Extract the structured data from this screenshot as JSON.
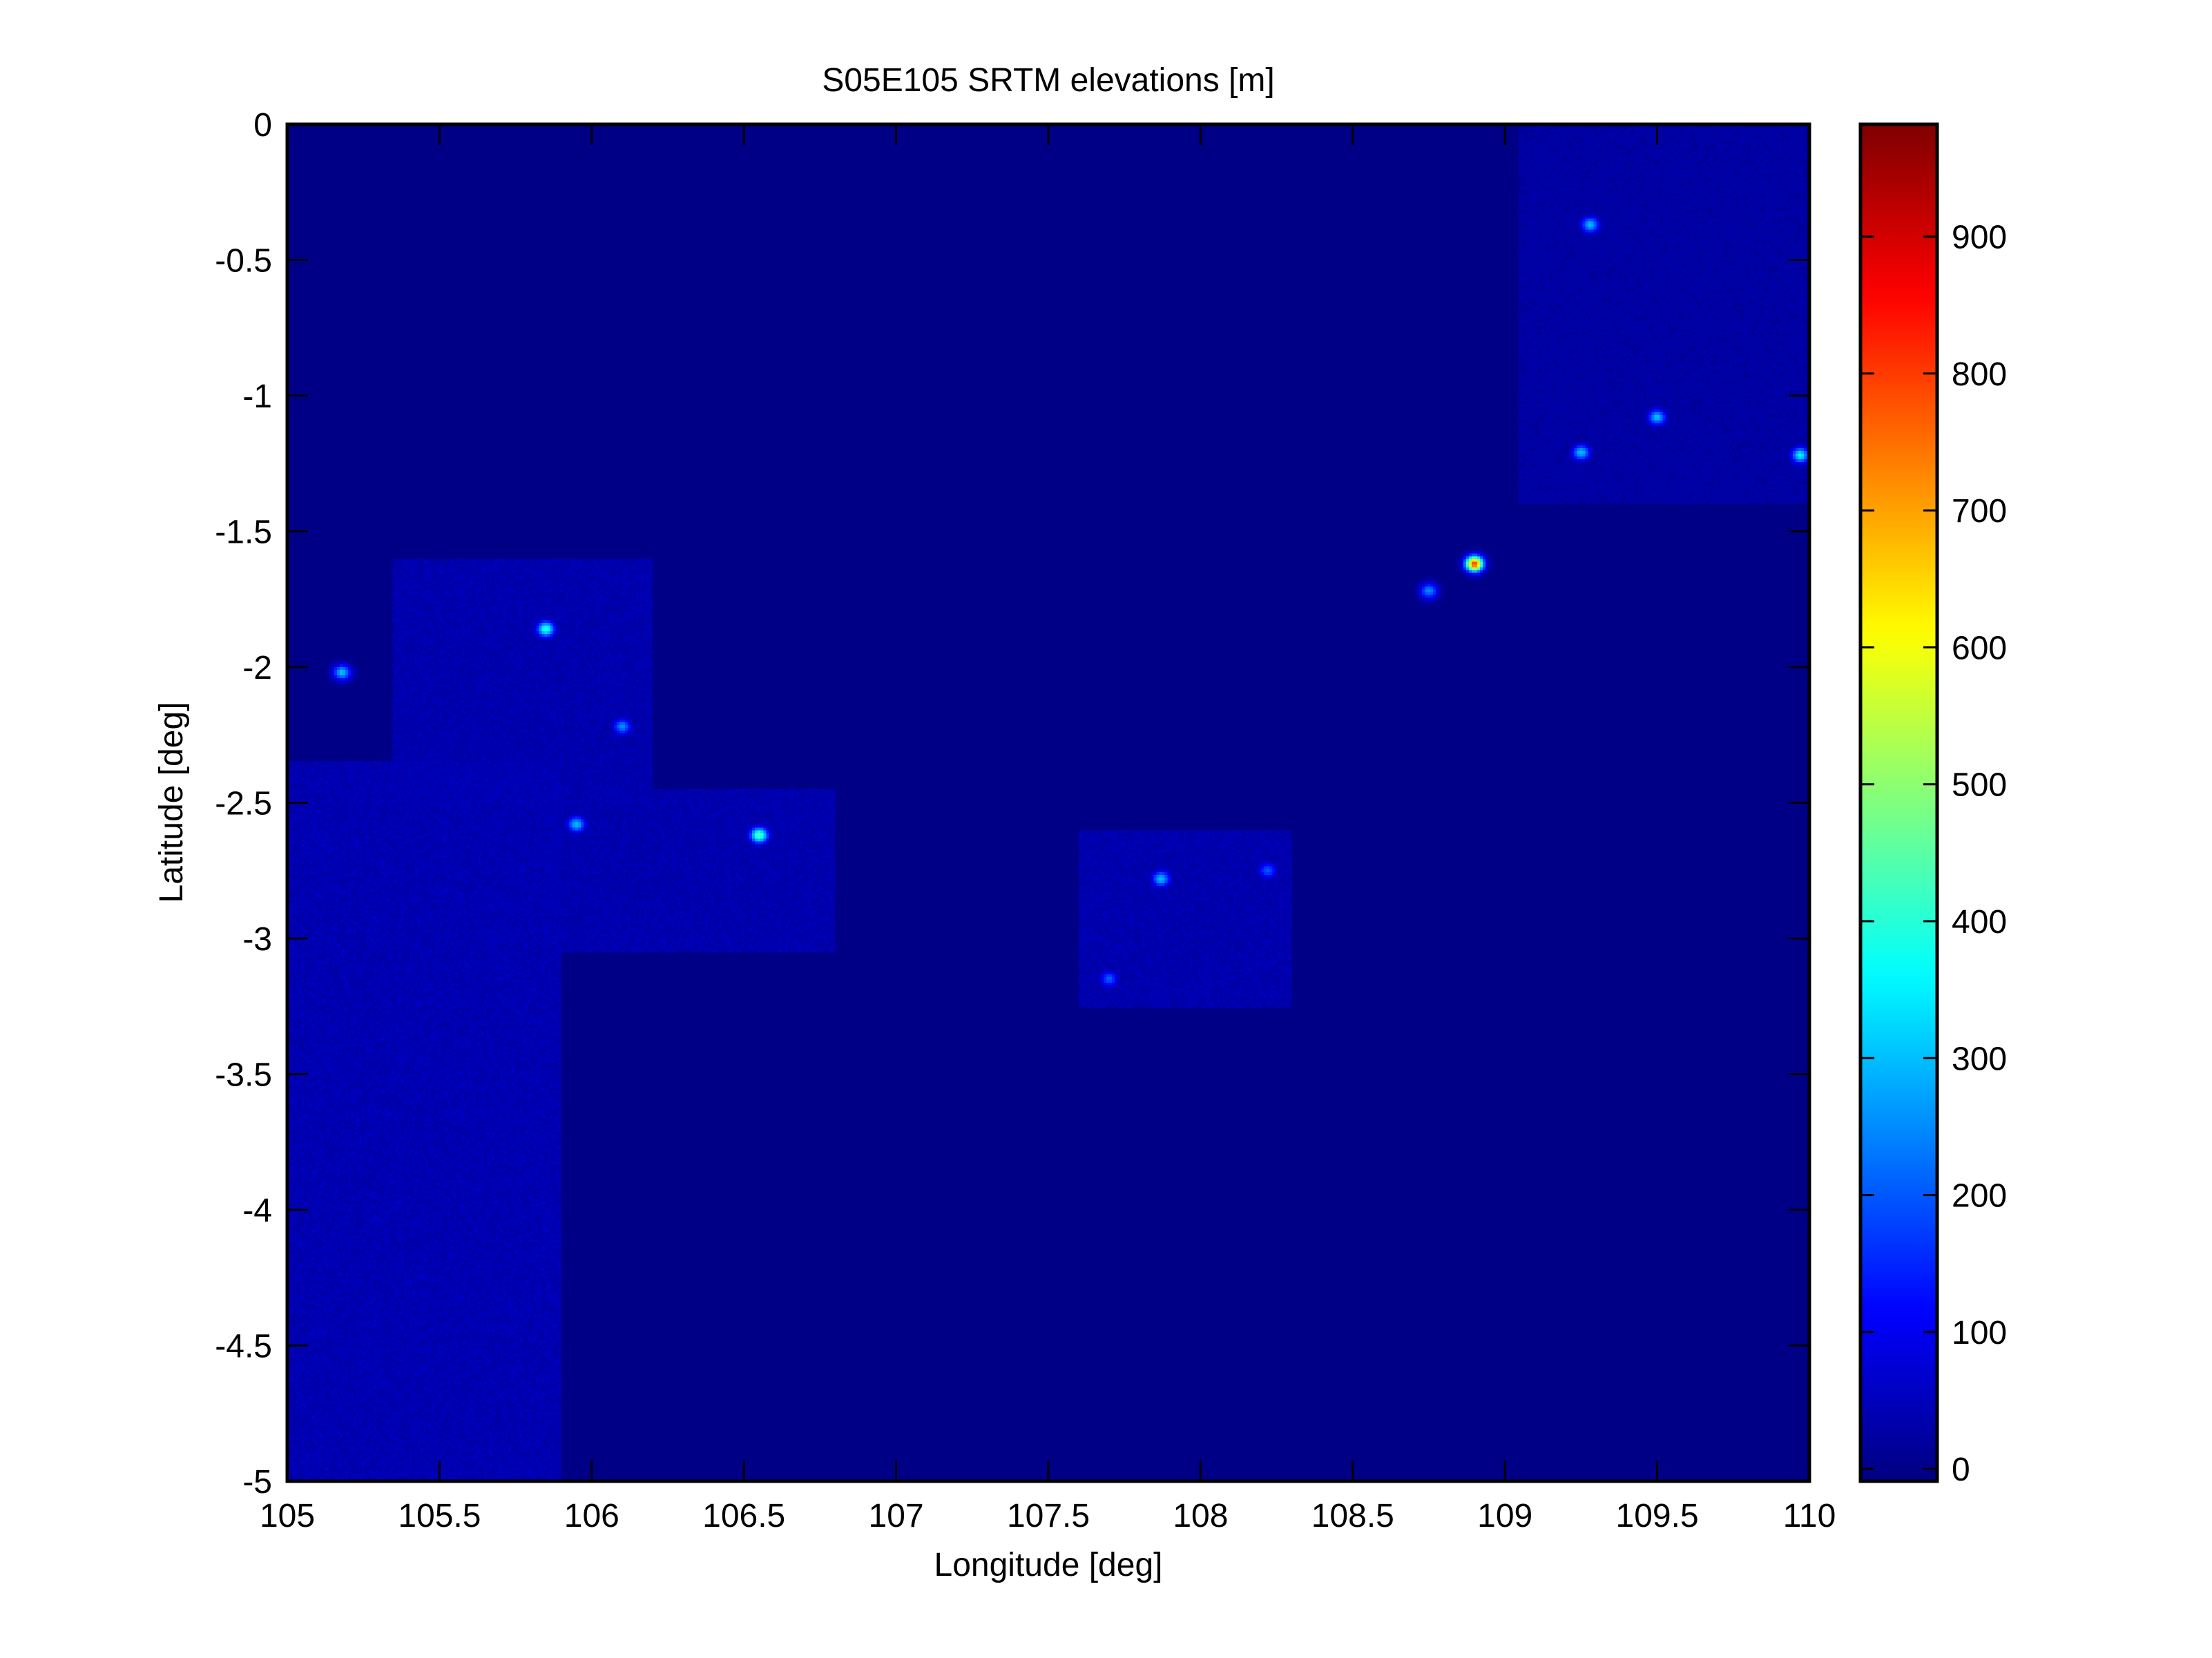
{
  "chart_data": {
    "type": "heatmap",
    "title": "S05E105 SRTM elevations [m]",
    "xlabel": "Longitude [deg]",
    "ylabel": "Latitude [deg]",
    "xlim": [
      105,
      110
    ],
    "ylim": [
      -5,
      0
    ],
    "xticks": [
      "105",
      "105.5",
      "106",
      "106.5",
      "107",
      "107.5",
      "108",
      "108.5",
      "109",
      "109.5",
      "110"
    ],
    "yticks": [
      "0",
      "-0.5",
      "-1",
      "-1.5",
      "-2",
      "-2.5",
      "-3",
      "-3.5",
      "-4",
      "-4.5",
      "-5"
    ],
    "colorbar": {
      "colormap": "jet",
      "levels": 64,
      "clim": [
        -9,
        982
      ],
      "ticks": [
        "0",
        "100",
        "200",
        "300",
        "400",
        "500",
        "600",
        "700",
        "800",
        "900"
      ]
    },
    "sea_value": -5,
    "land_regions": [
      {
        "lon": [
          105.0,
          105.9
        ],
        "lat": [
          -5.0,
          -2.35
        ],
        "elevation": 45
      },
      {
        "lon": [
          105.35,
          106.2
        ],
        "lat": [
          -2.5,
          -1.6
        ],
        "elevation": 40
      },
      {
        "lon": [
          105.85,
          106.8
        ],
        "lat": [
          -3.05,
          -2.45
        ],
        "elevation": 40
      },
      {
        "lon": [
          107.6,
          108.3
        ],
        "lat": [
          -3.25,
          -2.6
        ],
        "elevation": 40
      },
      {
        "lon": [
          109.05,
          110.0
        ],
        "lat": [
          -1.4,
          0.0
        ],
        "elevation": 30
      }
    ],
    "peaks": [
      {
        "lon": 108.9,
        "lat": -1.62,
        "elevation": 800
      },
      {
        "lon": 106.55,
        "lat": -2.62,
        "elevation": 450
      },
      {
        "lon": 105.85,
        "lat": -1.86,
        "elevation": 400
      },
      {
        "lon": 109.97,
        "lat": -1.22,
        "elevation": 350
      },
      {
        "lon": 105.18,
        "lat": -2.02,
        "elevation": 300
      },
      {
        "lon": 105.95,
        "lat": -2.58,
        "elevation": 300
      },
      {
        "lon": 107.87,
        "lat": -2.78,
        "elevation": 300
      },
      {
        "lon": 109.28,
        "lat": -0.37,
        "elevation": 300
      },
      {
        "lon": 109.5,
        "lat": -1.08,
        "elevation": 300
      },
      {
        "lon": 109.25,
        "lat": -1.21,
        "elevation": 300
      },
      {
        "lon": 106.1,
        "lat": -2.22,
        "elevation": 250
      },
      {
        "lon": 108.75,
        "lat": -1.72,
        "elevation": 250
      },
      {
        "lon": 108.22,
        "lat": -2.75,
        "elevation": 200
      },
      {
        "lon": 107.7,
        "lat": -3.15,
        "elevation": 200
      }
    ]
  }
}
